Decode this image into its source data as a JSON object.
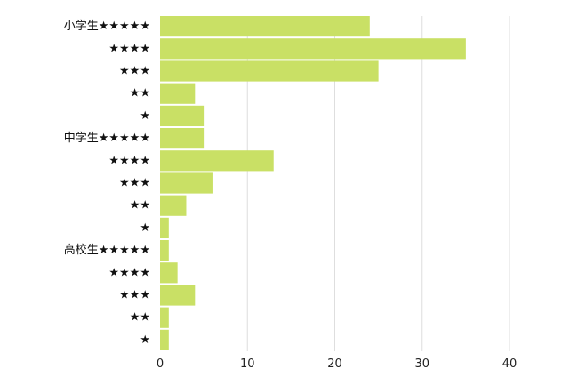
{
  "chart_data": {
    "type": "bar",
    "orientation": "horizontal",
    "title": "",
    "xlabel": "",
    "ylabel": "",
    "categories": [
      "小学生★★★★★",
      "★★★★",
      "★★★",
      "★★",
      "★",
      "中学生★★★★★",
      "★★★★",
      "★★★",
      "★★",
      "★",
      "高校生★★★★★",
      "★★★★",
      "★★★",
      "★★",
      "★"
    ],
    "values": [
      24,
      35,
      25,
      4,
      5,
      5,
      13,
      6,
      3,
      1,
      1,
      2,
      4,
      1,
      1
    ],
    "xlim": [
      0,
      40
    ],
    "xticks": [
      0,
      10,
      20,
      30,
      40
    ],
    "xtick_labels": [
      "0",
      "10",
      "20",
      "30",
      "40"
    ],
    "grid": "vertical",
    "legend": "none",
    "colors": {
      "bar": "#c9e065",
      "grid": "#dedede",
      "text": "#111111"
    }
  }
}
